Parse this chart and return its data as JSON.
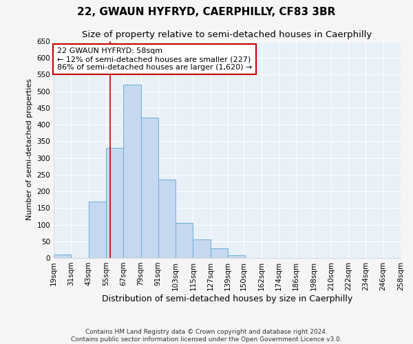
{
  "title": "22, GWAUN HYFRYD, CAERPHILLY, CF83 3BR",
  "subtitle": "Size of property relative to semi-detached houses in Caerphilly",
  "xlabel": "Distribution of semi-detached houses by size in Caerphilly",
  "ylabel": "Number of semi-detached properties",
  "footer1": "Contains HM Land Registry data © Crown copyright and database right 2024.",
  "footer2": "Contains public sector information licensed under the Open Government Licence v3.0.",
  "annotation_title": "22 GWAUN HYFRYD: 58sqm",
  "annotation_line1": "← 12% of semi-detached houses are smaller (227)",
  "annotation_line2": "86% of semi-detached houses are larger (1,620) →",
  "property_size": 58,
  "bar_left_edges": [
    19,
    31,
    43,
    55,
    67,
    79,
    91,
    103,
    115,
    127,
    139,
    150,
    162,
    174,
    186,
    198,
    210,
    222,
    234,
    246
  ],
  "bar_widths": [
    12,
    12,
    12,
    12,
    12,
    12,
    12,
    12,
    12,
    12,
    12,
    12,
    12,
    12,
    12,
    12,
    12,
    12,
    12,
    12
  ],
  "bar_heights": [
    10,
    0,
    170,
    330,
    520,
    420,
    235,
    105,
    55,
    28,
    8,
    0,
    0,
    0,
    0,
    0,
    0,
    0,
    0,
    0
  ],
  "bar_color": "#c5d8f0",
  "bar_edge_color": "#6baed6",
  "vline_color": "#cc0000",
  "vline_x": 58,
  "ylim": [
    0,
    650
  ],
  "yticks": [
    0,
    50,
    100,
    150,
    200,
    250,
    300,
    350,
    400,
    450,
    500,
    550,
    600,
    650
  ],
  "tick_labels": [
    "19sqm",
    "31sqm",
    "43sqm",
    "55sqm",
    "67sqm",
    "79sqm",
    "91sqm",
    "103sqm",
    "115sqm",
    "127sqm",
    "139sqm",
    "150sqm",
    "162sqm",
    "174sqm",
    "186sqm",
    "198sqm",
    "210sqm",
    "222sqm",
    "234sqm",
    "246sqm",
    "258sqm"
  ],
  "bg_color": "#e8f0f8",
  "grid_color": "#ffffff",
  "fig_bg_color": "#f5f5f5",
  "annotation_box_color": "#ffffff",
  "annotation_box_edge": "#cc0000",
  "title_fontsize": 11,
  "subtitle_fontsize": 9.5,
  "xlabel_fontsize": 9,
  "ylabel_fontsize": 8,
  "tick_fontsize": 7.5,
  "annotation_fontsize": 8,
  "footer_fontsize": 6.5
}
